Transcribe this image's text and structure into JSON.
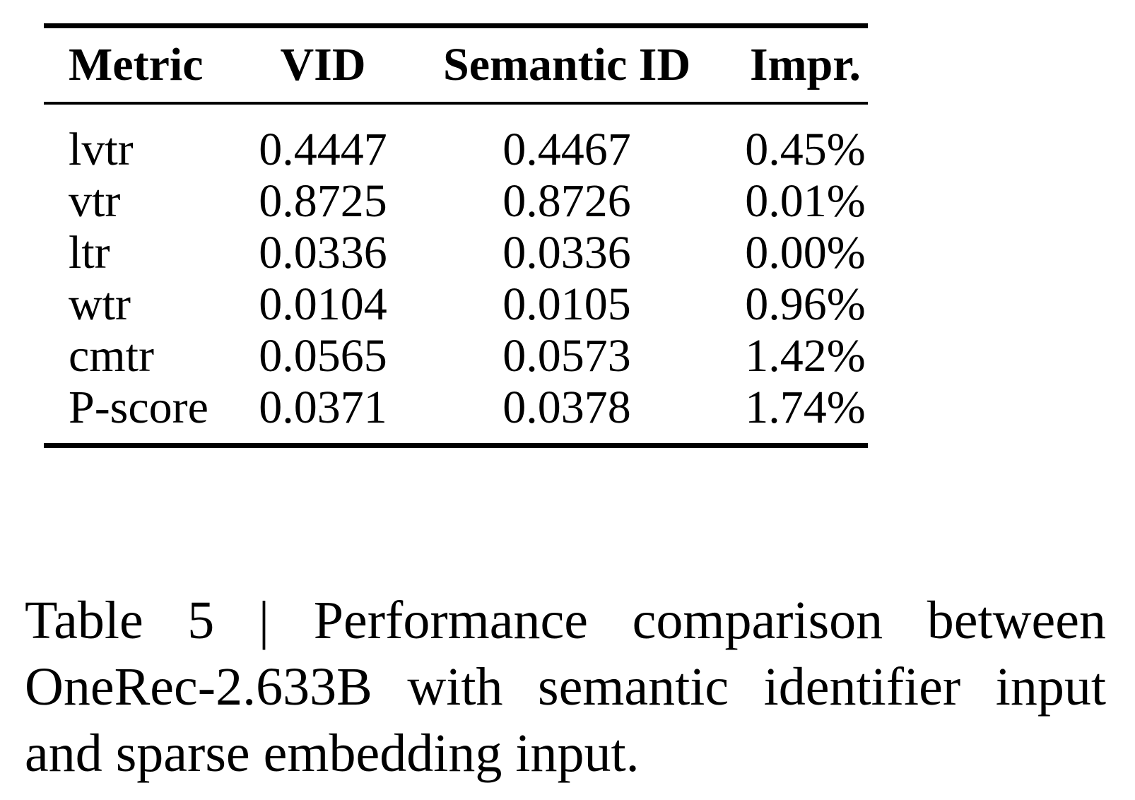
{
  "table": {
    "columns": [
      "Metric",
      "VID",
      "Semantic ID",
      "Impr."
    ],
    "rows": [
      {
        "metric": "lvtr",
        "vid": "0.4447",
        "semantic_id": "0.4467",
        "impr": "0.45%"
      },
      {
        "metric": "vtr",
        "vid": "0.8725",
        "semantic_id": "0.8726",
        "impr": "0.01%"
      },
      {
        "metric": "ltr",
        "vid": "0.0336",
        "semantic_id": "0.0336",
        "impr": "0.00%"
      },
      {
        "metric": "wtr",
        "vid": "0.0104",
        "semantic_id": "0.0105",
        "impr": "0.96%"
      },
      {
        "metric": "cmtr",
        "vid": "0.0565",
        "semantic_id": "0.0573",
        "impr": "1.42%"
      },
      {
        "metric": "P-score",
        "vid": "0.0371",
        "semantic_id": "0.0378",
        "impr": "1.74%"
      }
    ]
  },
  "caption": {
    "lines": [
      "Table 5 | Performance comparison between",
      "OneRec-2.633B with semantic identifier input",
      "and sparse embedding input."
    ],
    "full_text": "Table 5 | Performance comparison between OneRec-2.633B with semantic identifier input and sparse embedding input."
  },
  "colors": {
    "text": "#000000",
    "background": "#ffffff",
    "rule": "#000000"
  }
}
